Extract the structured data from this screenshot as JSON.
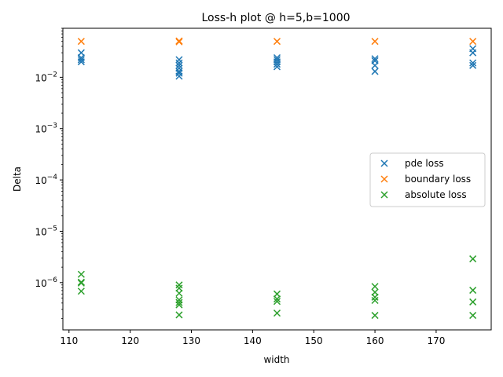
{
  "chart_data": {
    "type": "scatter",
    "title": "Loss-h plot @ h=5,b=1000",
    "xlabel": "width",
    "ylabel": "Delta",
    "xscale": "linear",
    "yscale": "log",
    "xlim": [
      109,
      179
    ],
    "ylim": [
      1.2e-07,
      0.09
    ],
    "xticks": [
      110,
      120,
      130,
      140,
      150,
      160,
      170
    ],
    "yticks": [
      {
        "value": 1e-06,
        "base": "10",
        "exp": "−6"
      },
      {
        "value": 1e-05,
        "base": "10",
        "exp": "−5"
      },
      {
        "value": 0.0001,
        "base": "10",
        "exp": "−4"
      },
      {
        "value": 0.001,
        "base": "10",
        "exp": "−3"
      },
      {
        "value": 0.01,
        "base": "10",
        "exp": "−2"
      }
    ],
    "grid": false,
    "legend_position": "center-right",
    "marker": "x",
    "series": [
      {
        "name": "pde loss",
        "color": "#1f77b4",
        "points": [
          [
            112,
            0.03
          ],
          [
            112,
            0.024
          ],
          [
            112,
            0.022
          ],
          [
            112,
            0.02
          ],
          [
            128,
            0.022
          ],
          [
            128,
            0.019
          ],
          [
            128,
            0.017
          ],
          [
            128,
            0.015
          ],
          [
            128,
            0.013
          ],
          [
            128,
            0.012
          ],
          [
            128,
            0.0105
          ],
          [
            144,
            0.024
          ],
          [
            144,
            0.022
          ],
          [
            144,
            0.02
          ],
          [
            144,
            0.018
          ],
          [
            144,
            0.016
          ],
          [
            160,
            0.023
          ],
          [
            160,
            0.021
          ],
          [
            160,
            0.017
          ],
          [
            160,
            0.013
          ],
          [
            176,
            0.036
          ],
          [
            176,
            0.03
          ],
          [
            176,
            0.019
          ],
          [
            176,
            0.017
          ]
        ]
      },
      {
        "name": "boundary loss",
        "color": "#ff7f0e",
        "points": [
          [
            112,
            0.05
          ],
          [
            128,
            0.051
          ],
          [
            128,
            0.049
          ],
          [
            144,
            0.05
          ],
          [
            160,
            0.05
          ],
          [
            176,
            0.05
          ]
        ]
      },
      {
        "name": "absolute loss",
        "color": "#2ca02c",
        "points": [
          [
            112,
            1.45e-06
          ],
          [
            112,
            1.02e-06
          ],
          [
            112,
            9.8e-07
          ],
          [
            112,
            6.8e-07
          ],
          [
            128,
            9e-07
          ],
          [
            128,
            7.8e-07
          ],
          [
            128,
            6.2e-07
          ],
          [
            128,
            4.6e-07
          ],
          [
            128,
            4.1e-07
          ],
          [
            128,
            3.7e-07
          ],
          [
            128,
            2.35e-07
          ],
          [
            144,
            6e-07
          ],
          [
            144,
            4.8e-07
          ],
          [
            144,
            4.3e-07
          ],
          [
            144,
            2.55e-07
          ],
          [
            160,
            8.4e-07
          ],
          [
            160,
            6.5e-07
          ],
          [
            160,
            5.2e-07
          ],
          [
            160,
            4.5e-07
          ],
          [
            160,
            2.3e-07
          ],
          [
            176,
            2.9e-06
          ],
          [
            176,
            7.1e-07
          ],
          [
            176,
            4.2e-07
          ],
          [
            176,
            2.3e-07
          ]
        ]
      }
    ]
  }
}
